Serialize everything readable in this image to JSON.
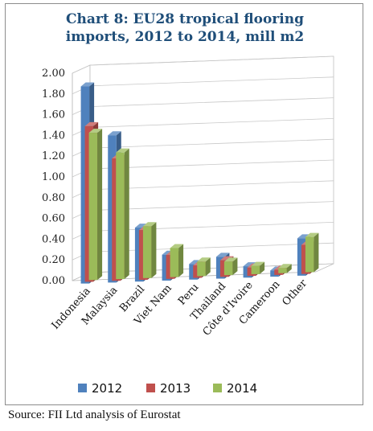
{
  "chart_data": {
    "type": "bar",
    "title": "Chart 8: EU28 tropical flooring\nimports, 2012 to 2014, mill m2",
    "categories": [
      "Indonesia",
      "Malaysia",
      "Brazil",
      "Viet Nam",
      "Peru",
      "Thailand",
      "Côte d'Ivoire",
      "Cameroon",
      "Other"
    ],
    "series": [
      {
        "name": "2012",
        "values": [
          1.9,
          1.42,
          0.52,
          0.25,
          0.15,
          0.21,
          0.11,
          0.06,
          0.36
        ],
        "color": "#4f81bd"
      },
      {
        "name": "2013",
        "values": [
          1.5,
          1.18,
          0.48,
          0.23,
          0.12,
          0.16,
          0.08,
          0.05,
          0.28
        ],
        "color": "#c0504d"
      },
      {
        "name": "2014",
        "values": [
          1.42,
          1.22,
          0.5,
          0.28,
          0.14,
          0.13,
          0.08,
          0.05,
          0.34
        ],
        "color": "#9bbb59"
      }
    ],
    "y_ticks": [
      "0.00",
      "0.20",
      "0.40",
      "0.60",
      "0.80",
      "1.00",
      "1.20",
      "1.40",
      "1.60",
      "1.80",
      "2.00"
    ],
    "ylim": [
      0,
      2.0
    ],
    "grid": true,
    "legend_position": "bottom"
  },
  "source": "Source: FII Ltd analysis of Eurostat"
}
